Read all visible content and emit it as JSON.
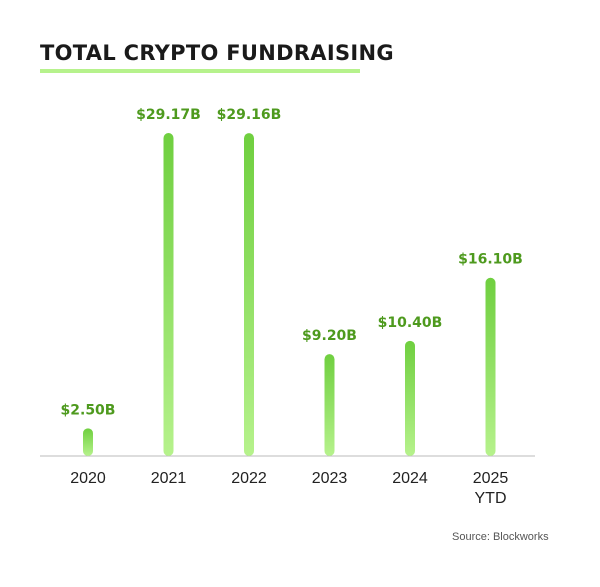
{
  "chart_data": {
    "type": "bar",
    "title": "TOTAL CRYPTO FUNDRAISING",
    "categories": [
      "2020",
      "2021",
      "2022",
      "2023",
      "2024",
      "2025 YTD"
    ],
    "values": [
      2.5,
      29.17,
      29.16,
      9.2,
      10.4,
      16.1
    ],
    "value_labels": [
      "$2.50B",
      "$29.17B",
      "$29.16B",
      "$9.20B",
      "$10.40B",
      "$16.10B"
    ],
    "color": "#7fd94f",
    "source": "Source: Blockworks"
  }
}
